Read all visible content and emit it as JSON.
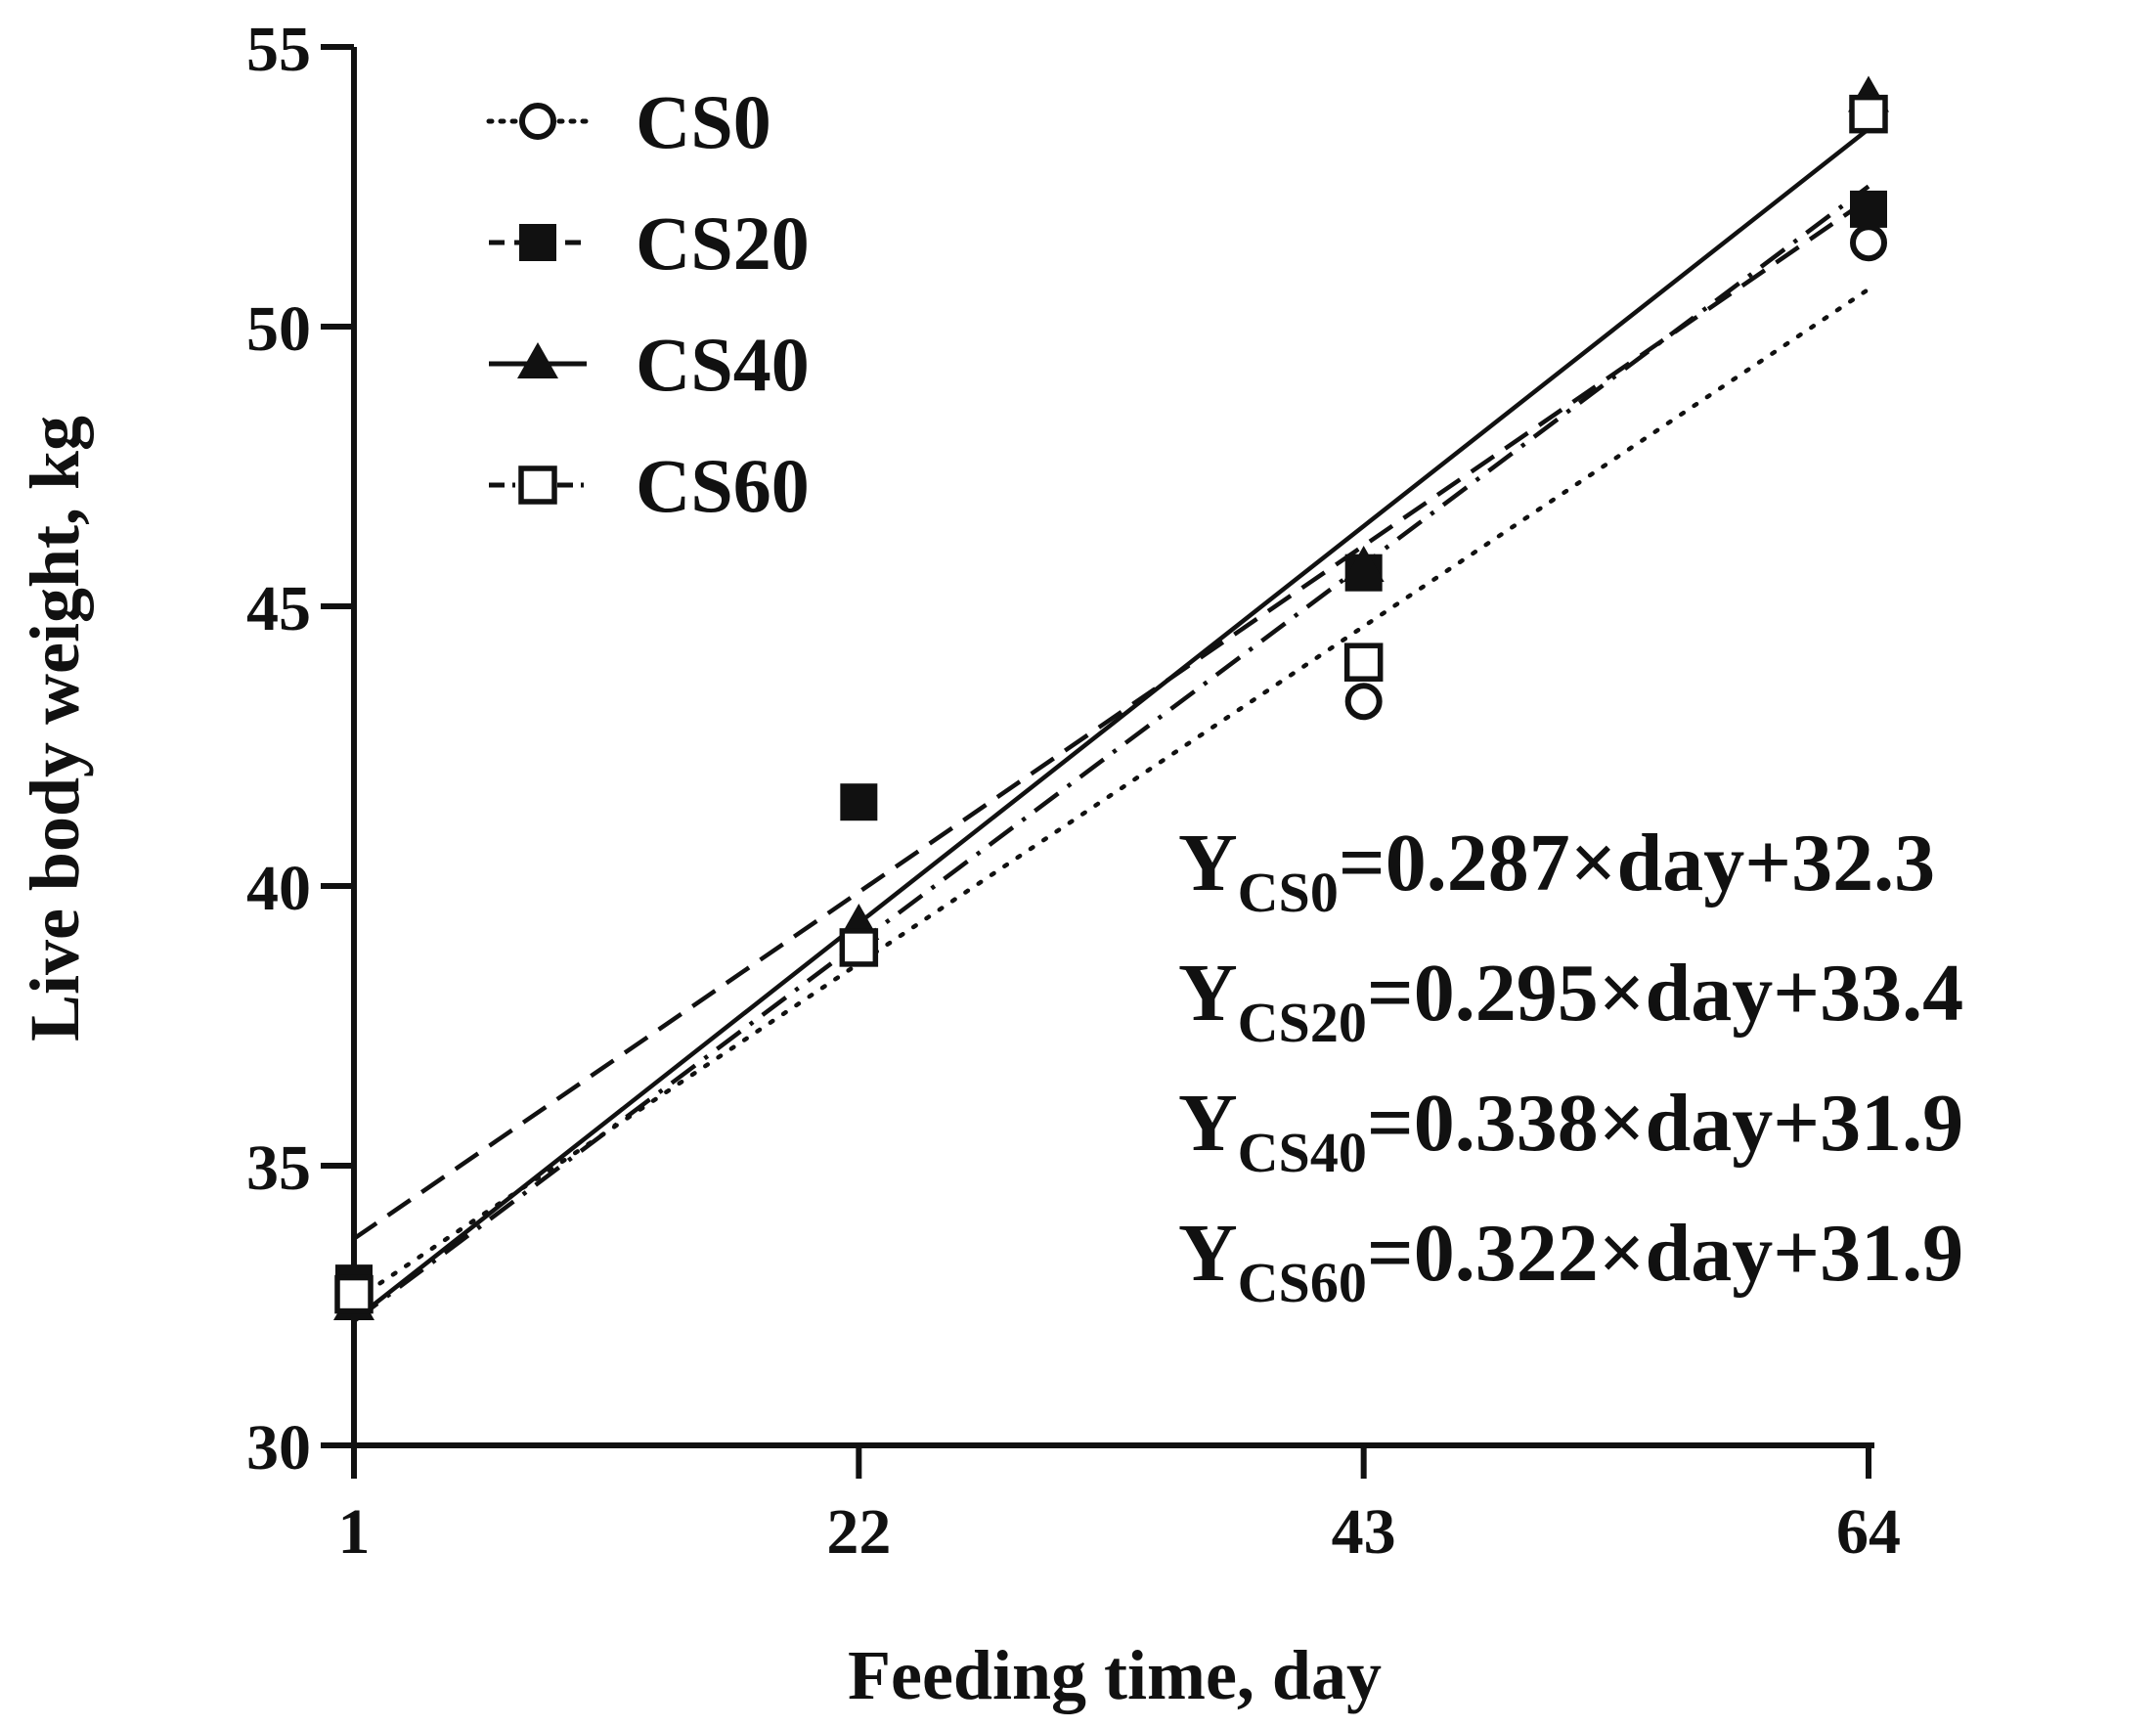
{
  "chart_data": {
    "type": "scatter",
    "title": "",
    "xlabel": "Feeding time, day",
    "ylabel": "Live body weight, kg",
    "xlim": [
      1,
      64
    ],
    "ylim": [
      30,
      55
    ],
    "x_ticks": [
      "1",
      "22",
      "43",
      "64"
    ],
    "y_ticks": [
      "30",
      "35",
      "40",
      "45",
      "50",
      "55"
    ],
    "x": [
      1,
      22,
      43,
      64
    ],
    "legend_position": "top-left",
    "series": [
      {
        "name": "CS0",
        "marker": "open-circle",
        "line": "dotted",
        "values": [
          32.9,
          38.9,
          43.3,
          51.5
        ],
        "slope": 0.287,
        "intercept": 32.3
      },
      {
        "name": "CS20",
        "marker": "filled-square",
        "line": "dashed",
        "values": [
          32.9,
          41.5,
          45.6,
          52.1
        ],
        "slope": 0.295,
        "intercept": 33.4
      },
      {
        "name": "CS40",
        "marker": "filled-triangle",
        "line": "solid",
        "values": [
          32.5,
          39.3,
          45.7,
          54.1
        ],
        "slope": 0.338,
        "intercept": 31.9
      },
      {
        "name": "CS60",
        "marker": "open-square",
        "line": "dash-dot",
        "values": [
          32.7,
          38.9,
          44.0,
          53.8
        ],
        "slope": 0.322,
        "intercept": 31.9
      }
    ],
    "equations": [
      {
        "y": "Y",
        "sub": "CS0",
        "rhs": "=0.287×day+32.3"
      },
      {
        "y": "Y",
        "sub": "CS20",
        "rhs": "=0.295×day+33.4"
      },
      {
        "y": "Y",
        "sub": "CS40",
        "rhs": "=0.338×day+31.9"
      },
      {
        "y": "Y",
        "sub": "CS60",
        "rhs": "=0.322×day+31.9"
      }
    ],
    "colors": {
      "ink": "#111111",
      "background": "#ffffff"
    }
  }
}
